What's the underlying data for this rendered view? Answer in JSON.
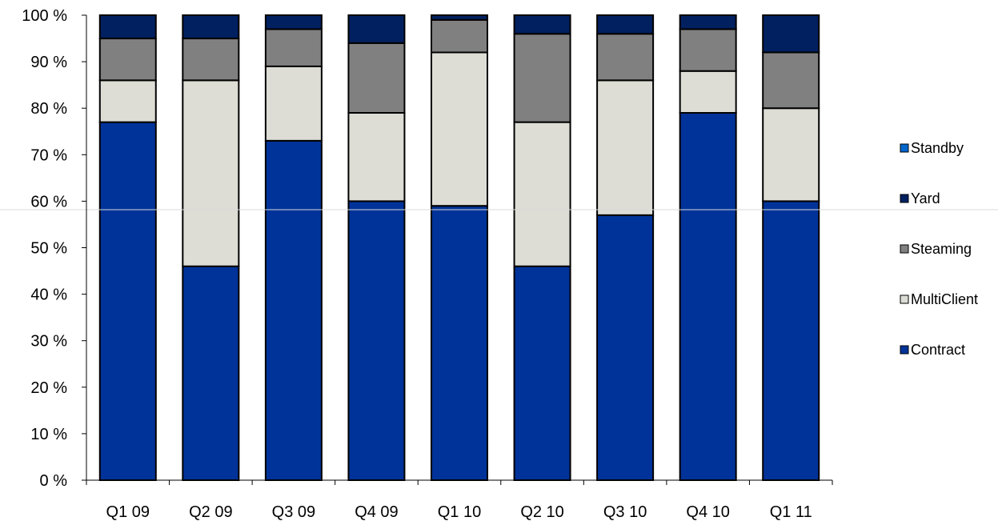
{
  "chart_data": {
    "type": "bar",
    "stacked": true,
    "categories": [
      "Q1 09",
      "Q2 09",
      "Q3 09",
      "Q4 09",
      "Q1 10",
      "Q2 10",
      "Q3 10",
      "Q4 10",
      "Q1 11"
    ],
    "y_ticks": [
      "0 %",
      "10 %",
      "20 %",
      "30 %",
      "40 %",
      "50 %",
      "60 %",
      "70 %",
      "80 %",
      "90 %",
      "100 %"
    ],
    "ylim": [
      0,
      100
    ],
    "title": "",
    "xlabel": "",
    "ylabel": "",
    "grid": false,
    "legend_position": "right",
    "series": [
      {
        "name": "Contract",
        "color": "#003399",
        "values": [
          77,
          46,
          73,
          60,
          59,
          46,
          57,
          79,
          60
        ]
      },
      {
        "name": "MultiClient",
        "color": "#ddddd6",
        "values": [
          9,
          40,
          16,
          19,
          33,
          31,
          29,
          9,
          20
        ]
      },
      {
        "name": "Steaming",
        "color": "#808080",
        "values": [
          9,
          9,
          8,
          15,
          7,
          19,
          10,
          9,
          12
        ]
      },
      {
        "name": "Yard",
        "color": "#002060",
        "values": [
          5,
          5,
          3,
          6,
          1,
          4,
          4,
          3,
          8
        ]
      },
      {
        "name": "Standby",
        "color": "#0066cc",
        "values": [
          0,
          0,
          0,
          0,
          0,
          0,
          0,
          0,
          0
        ]
      }
    ],
    "legend_order": [
      "Standby",
      "Yard",
      "Steaming",
      "MultiClient",
      "Contract"
    ]
  }
}
